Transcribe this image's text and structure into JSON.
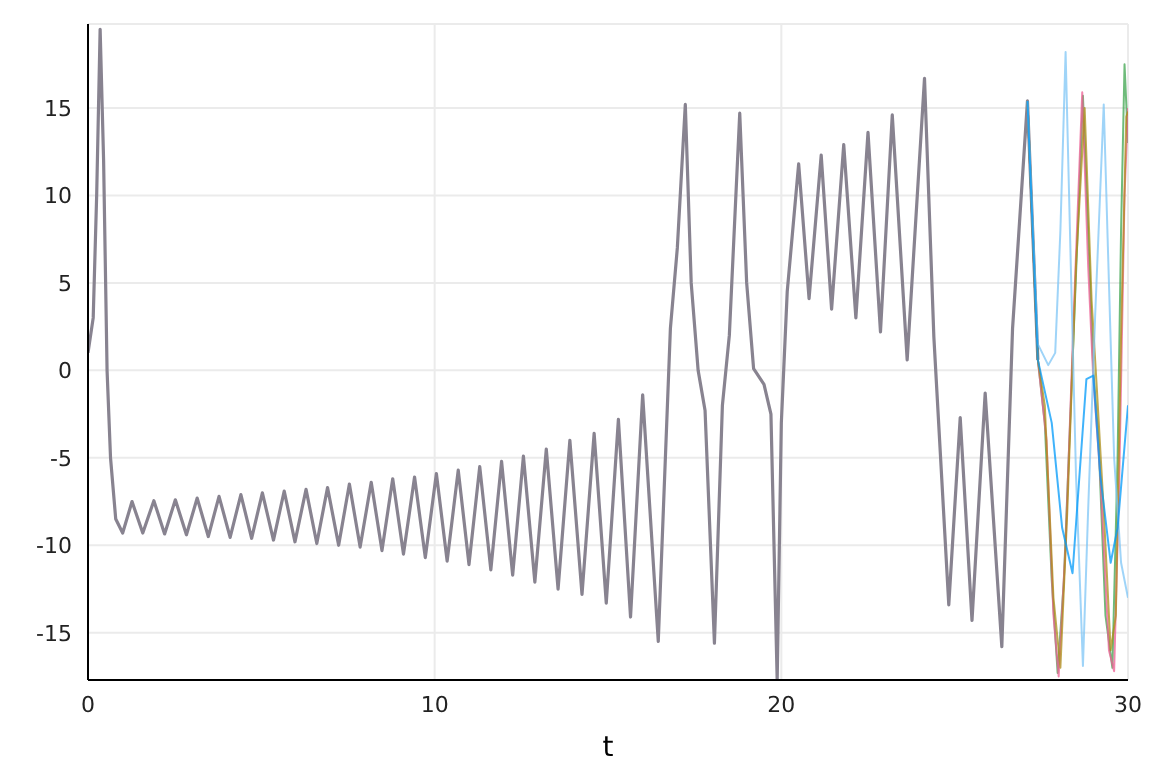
{
  "chart_data": {
    "type": "line",
    "xlabel": "t",
    "xlim": [
      0,
      30
    ],
    "xticks": [
      0,
      10,
      20,
      30
    ],
    "ylim": [
      -17.7,
      19.8
    ],
    "yticks": [
      -15,
      -10,
      -5,
      0,
      5,
      10,
      15
    ],
    "grid": true,
    "series": [
      {
        "color": "#888390",
        "x": [
          0,
          0.15,
          0.25,
          0.35,
          0.45,
          0.55,
          0.65,
          0.8,
          1.0,
          1.27,
          1.58,
          1.9,
          2.21,
          2.52,
          2.84,
          3.15,
          3.47,
          3.78,
          4.1,
          4.41,
          4.72,
          5.03,
          5.35,
          5.66,
          5.97,
          6.29,
          6.6,
          6.91,
          7.23,
          7.54,
          7.85,
          8.17,
          8.48,
          8.79,
          9.1,
          9.42,
          9.73,
          10.05,
          10.36,
          10.68,
          10.99,
          11.3,
          11.62,
          11.93,
          12.25,
          12.56,
          12.89,
          13.22,
          13.56,
          13.9,
          14.25,
          14.6,
          14.95,
          15.3,
          15.65,
          16.0,
          16.45,
          16.8,
          17.0,
          17.23,
          17.4,
          17.6,
          17.8,
          18.07,
          18.3,
          18.5,
          18.8,
          19.0,
          19.2,
          19.5,
          19.7,
          19.88,
          20.0,
          20.17,
          20.5,
          20.8,
          21.15,
          21.45,
          21.8,
          22.15,
          22.5,
          22.86,
          23.2,
          23.63,
          24.13,
          24.4,
          24.83,
          25.16,
          25.5,
          25.88,
          26.36,
          26.67,
          27.1,
          27.4
        ],
        "values": [
          1.0,
          3,
          10,
          19.5,
          12,
          0,
          -5,
          -8.5,
          -9.3,
          -7.5,
          -9.3,
          -7.45,
          -9.35,
          -7.4,
          -9.4,
          -7.3,
          -9.5,
          -7.2,
          -9.55,
          -7.1,
          -9.6,
          -7.0,
          -9.7,
          -6.9,
          -9.8,
          -6.8,
          -9.9,
          -6.7,
          -10.0,
          -6.5,
          -10.1,
          -6.4,
          -10.3,
          -6.2,
          -10.5,
          -6.1,
          -10.7,
          -5.9,
          -10.9,
          -5.7,
          -11.1,
          -5.5,
          -11.4,
          -5.2,
          -11.7,
          -4.9,
          -12.1,
          -4.5,
          -12.5,
          -4.0,
          -12.8,
          -3.6,
          -13.3,
          -2.8,
          -14.1,
          -1.4,
          -15.5,
          2.4,
          7,
          15.2,
          5,
          0.0,
          -2.3,
          -15.6,
          -2,
          2,
          14.7,
          5,
          0.1,
          -0.8,
          -2.5,
          -17.7,
          -3,
          4.5,
          11.8,
          4.1,
          12.3,
          3.5,
          12.9,
          3.0,
          13.6,
          2.2,
          14.6,
          0.6,
          16.7,
          1.9,
          -13.4,
          -2.7,
          -14.3,
          -1.3,
          -15.8,
          2.4,
          15.4,
          0.6
        ]
      },
      {
        "color": "#3ea44e",
        "x": [
          27.1,
          27.4,
          27.6,
          27.8,
          27.97,
          28.15,
          28.35,
          28.55,
          28.7,
          28.85,
          29.0,
          29.15,
          29.35,
          29.55,
          29.7,
          29.8,
          29.9,
          30
        ],
        "values": [
          15.4,
          0.6,
          -3,
          -12,
          -17.3,
          -12,
          -2,
          8,
          15.7,
          8,
          0,
          -4,
          -14,
          -17,
          -5,
          8,
          17.5,
          13
        ]
      },
      {
        "color": "#ed5e93",
        "x": [
          27.1,
          27.4,
          27.65,
          27.85,
          28.0,
          28.2,
          28.45,
          28.68,
          28.85,
          29.0,
          29.2,
          29.45,
          29.6,
          29.75,
          29.9,
          30
        ],
        "values": [
          15.4,
          0.6,
          -4,
          -14,
          -17.5,
          -10,
          4,
          15.9,
          6,
          -0.5,
          -6,
          -16,
          -17.2,
          -6,
          10,
          15
        ]
      },
      {
        "color": "#ac8e18",
        "x": [
          27.1,
          27.4,
          27.6,
          27.85,
          28.05,
          28.25,
          28.5,
          28.75,
          28.95,
          29.1,
          29.3,
          29.5,
          29.65,
          29.8,
          29.95,
          30
        ],
        "values": [
          15.4,
          0.6,
          -2,
          -13,
          -17,
          -8,
          6,
          15,
          4,
          -1,
          -8,
          -16,
          -14,
          2,
          14.5,
          14.8
        ]
      },
      {
        "color": "#7fc6f5",
        "x": [
          27.1,
          27.4,
          27.7,
          27.9,
          28.05,
          28.2,
          28.35,
          28.5,
          28.7,
          28.85,
          29.05,
          29.3,
          29.45,
          29.6,
          29.8,
          30
        ],
        "values": [
          15.4,
          1.5,
          0.3,
          1,
          8,
          18.2,
          6,
          -6,
          -16.9,
          -8,
          3,
          15.2,
          5,
          -5,
          -11,
          -13
        ]
      },
      {
        "color": "#009afa",
        "x": [
          27.1,
          27.4,
          27.8,
          28.1,
          28.4,
          28.6,
          28.8,
          29.0,
          29.2,
          29.5,
          29.7,
          30
        ],
        "values": [
          15.4,
          0.6,
          -3,
          -9,
          -11.6,
          -6,
          -0.5,
          -0.3,
          -6,
          -11,
          -9,
          -2
        ]
      }
    ]
  }
}
